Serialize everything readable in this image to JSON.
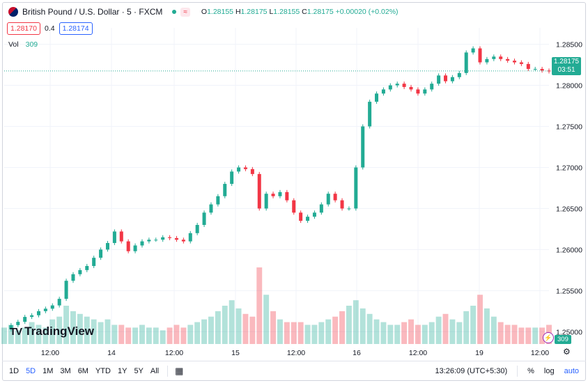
{
  "header": {
    "title": "British Pound / U.S. Dollar · 5 · FXCM",
    "open_label": "O",
    "open": "1.28155",
    "high_label": "H",
    "high": "1.28175",
    "low_label": "L",
    "low": "1.28155",
    "close_label": "C",
    "close": "1.28175",
    "change": "+0.00020 (+0.02%)",
    "waves_icon": "≈"
  },
  "quote": {
    "sell": "1.28170",
    "spread": "0.4",
    "buy": "1.28174"
  },
  "volume_legend": {
    "label": "Vol",
    "value": "309"
  },
  "price_tag": {
    "price": "1.28175",
    "countdown": "03:51"
  },
  "volume_tag": "309",
  "logo_text": "TradingView",
  "colors": {
    "up": "#22ab94",
    "down": "#f23645",
    "accent": "#2962ff"
  },
  "toolbar": {
    "timeframes": [
      "1D",
      "5D",
      "1M",
      "3M",
      "6M",
      "YTD",
      "1Y",
      "5Y",
      "All"
    ],
    "active": "5D",
    "time": "13:26:09 (UTC+5:30)",
    "percent": "%",
    "log": "log",
    "auto": "auto"
  },
  "chart_data": {
    "type": "line",
    "title": "British Pound / U.S. Dollar · 5 · FXCM",
    "y_ticks": [
      "1.28500",
      "1.28000",
      "1.27500",
      "1.27000",
      "1.26500",
      "1.26000",
      "1.25500",
      "1.25000"
    ],
    "x_ticks": [
      "12:00",
      "14",
      "12:00",
      "15",
      "12:00",
      "16",
      "12:00",
      "19",
      "12:00"
    ],
    "ylim": [
      1.2485,
      1.287
    ],
    "series": [
      {
        "values": [
          1.2503,
          1.2508,
          1.2512,
          1.2518,
          1.252,
          1.2525,
          1.2528,
          1.2532,
          1.254,
          1.2562,
          1.257,
          1.2575,
          1.258,
          1.259,
          1.26,
          1.2608,
          1.2622,
          1.261,
          1.2598,
          1.2605,
          1.261,
          1.2612,
          1.2612,
          1.2615,
          1.2614,
          1.2612,
          1.261,
          1.262,
          1.263,
          1.2645,
          1.2655,
          1.2665,
          1.268,
          1.2695,
          1.27,
          1.2698,
          1.2692,
          1.265,
          1.2668,
          1.2665,
          1.267,
          1.266,
          1.2645,
          1.2635,
          1.264,
          1.2645,
          1.2655,
          1.2668,
          1.266,
          1.265,
          1.265,
          1.27,
          1.275,
          1.278,
          1.279,
          1.2795,
          1.28,
          1.2802,
          1.2798,
          1.2795,
          1.279,
          1.2795,
          1.2802,
          1.2812,
          1.2805,
          1.281,
          1.2815,
          1.284,
          1.2845,
          1.2828,
          1.2832,
          1.2835,
          1.2832,
          1.283,
          1.2828,
          1.2826,
          1.282,
          1.282,
          1.2818,
          1.2817
        ]
      }
    ],
    "volume": [
      6,
      7,
      5,
      6,
      8,
      7,
      6,
      9,
      10,
      14,
      12,
      11,
      10,
      9,
      8,
      9,
      7,
      7,
      6,
      6,
      7,
      6,
      6,
      5,
      6,
      7,
      6,
      7,
      8,
      9,
      10,
      12,
      14,
      16,
      13,
      11,
      10,
      28,
      18,
      12,
      9,
      8,
      8,
      8,
      7,
      7,
      8,
      9,
      10,
      12,
      14,
      16,
      13,
      11,
      9,
      8,
      7,
      7,
      8,
      9,
      7,
      7,
      8,
      10,
      11,
      9,
      8,
      12,
      14,
      18,
      13,
      10,
      8,
      7,
      7,
      6,
      6,
      6,
      6,
      7
    ],
    "grid": true,
    "legend": "top-left"
  }
}
